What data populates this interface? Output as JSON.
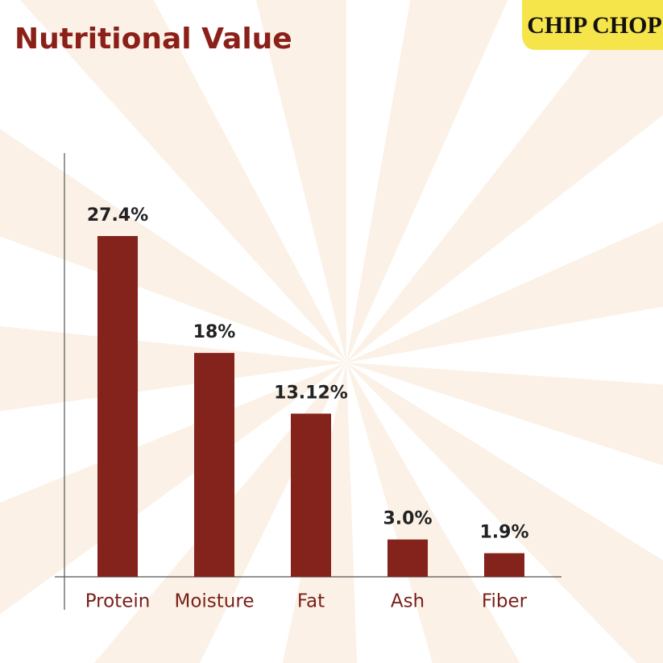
{
  "brand": "CHIP CHOP",
  "chart_data": {
    "type": "bar",
    "title": "Nutritional Value",
    "categories": [
      "Protein",
      "Moisture",
      "Fat",
      "Ash",
      "Fiber"
    ],
    "values": [
      27.4,
      18,
      13.12,
      3.0,
      1.9
    ],
    "value_labels": [
      "27.4%",
      "18%",
      "13.12%",
      "3.0%",
      "1.9%"
    ],
    "color": "#84221c"
  }
}
